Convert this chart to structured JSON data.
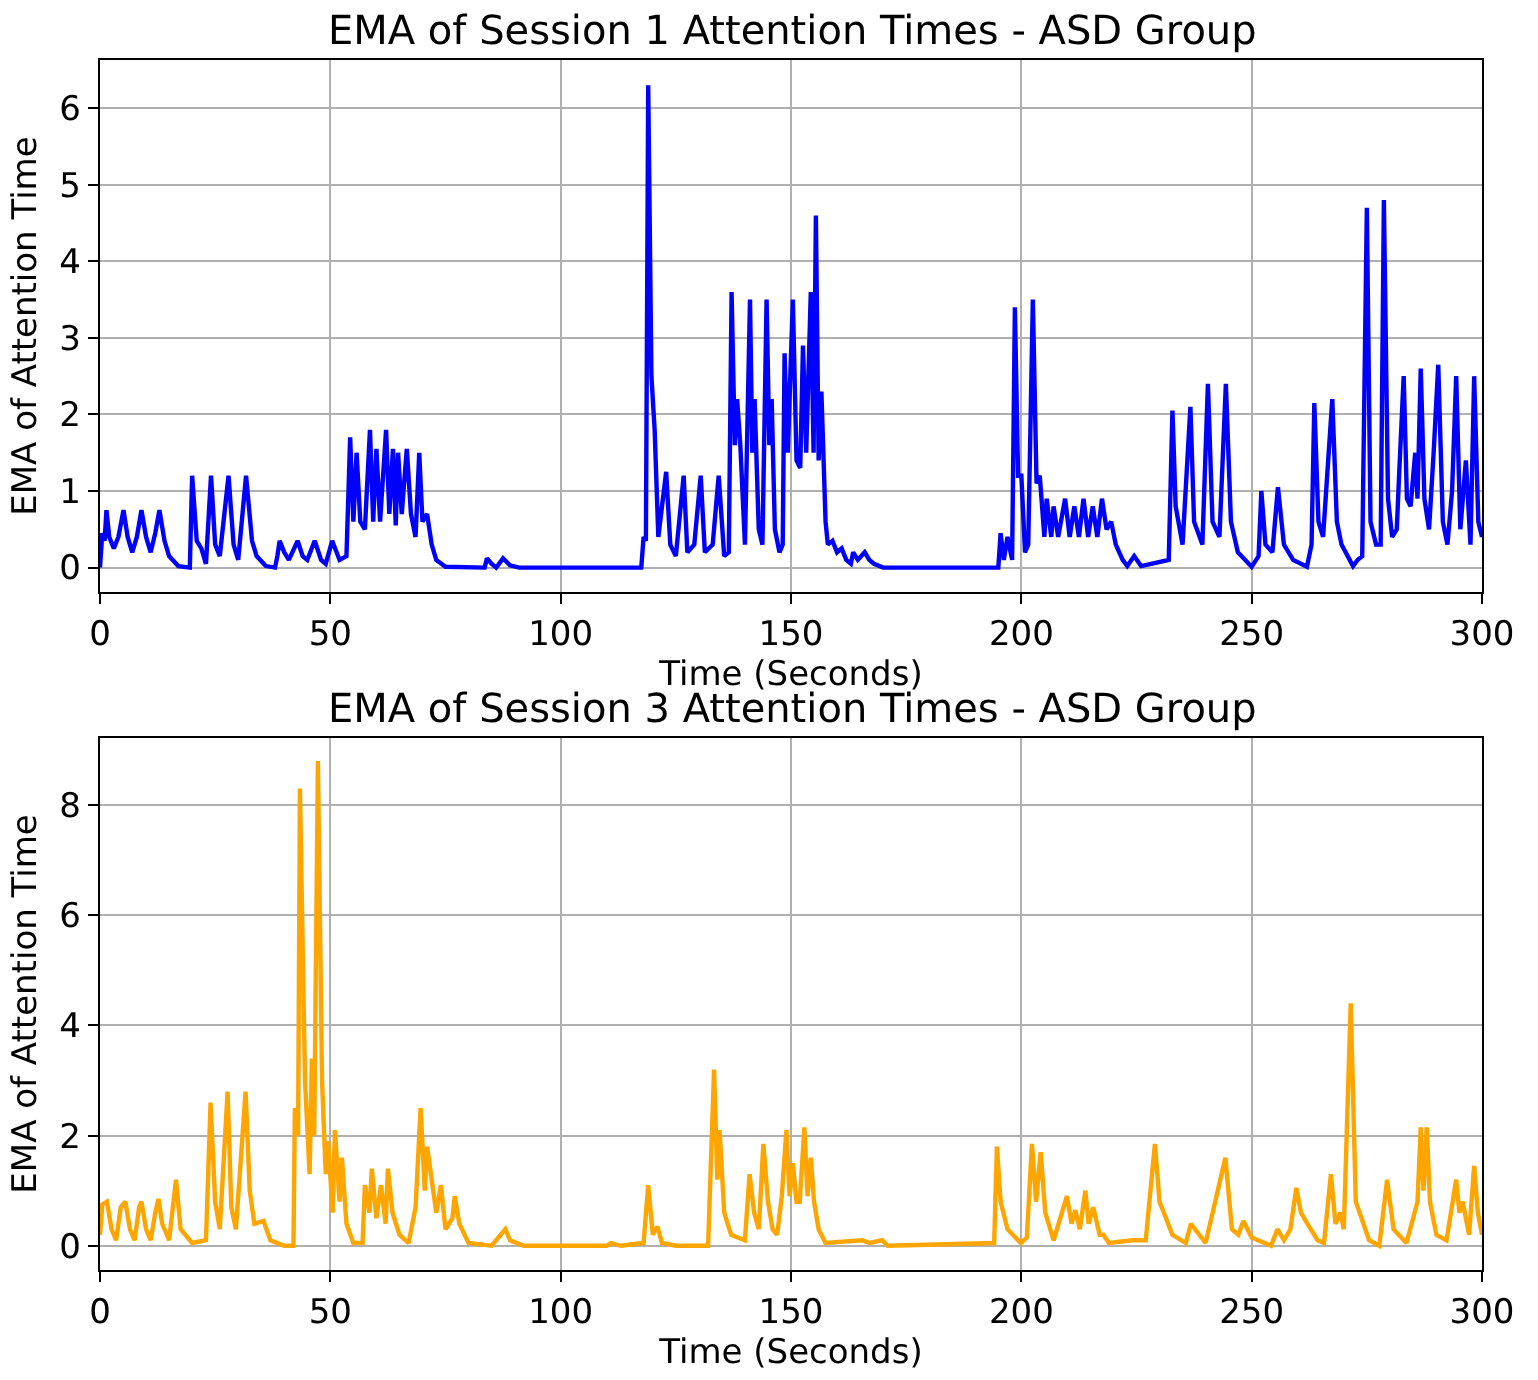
{
  "chart_data": [
    {
      "type": "line",
      "title": "EMA of Session 1 Attention Times - ASD Group",
      "xlabel": "Time (Seconds)",
      "ylabel": "EMA of Attention Time",
      "xlim": [
        0,
        300
      ],
      "ylim": [
        -0.32,
        6.63
      ],
      "xticks": [
        0,
        50,
        100,
        150,
        200,
        250,
        300
      ],
      "yticks": [
        0,
        1,
        2,
        3,
        4,
        5,
        6
      ],
      "grid": true,
      "series": [
        {
          "color": "#0000ff",
          "x": [
            0,
            0.5,
            1,
            1.4,
            2,
            3,
            4,
            5.1,
            6,
            7,
            8,
            9,
            10,
            11,
            12,
            12.9,
            14,
            15,
            17,
            19.5,
            20,
            21,
            22,
            23,
            24.1,
            25,
            26,
            27.9,
            29,
            30,
            31.7,
            33,
            34,
            36,
            38,
            38.5,
            39,
            40,
            41,
            42.9,
            44,
            45,
            46.6,
            48,
            49,
            50.4,
            52,
            53.5,
            54.3,
            55,
            55.7,
            56.5,
            57.5,
            58.6,
            59.3,
            60,
            60.8,
            62.1,
            62.8,
            63.6,
            64.2,
            64.7,
            65.5,
            66.6,
            67.5,
            68.5,
            69.3,
            70,
            71,
            72,
            73,
            75,
            83.5,
            84,
            85,
            86,
            87.5,
            89,
            91,
            117.5,
            118,
            118.5,
            119,
            119.7,
            120.4,
            121.2,
            122.9,
            123.8,
            125,
            126.7,
            127.5,
            129,
            130.4,
            131.3,
            133,
            134.3,
            135.5,
            136.5,
            137.1,
            137.8,
            138.3,
            139,
            140,
            141.1,
            141.6,
            142.1,
            143,
            143.8,
            144.7,
            145.3,
            145.8,
            146.5,
            147.5,
            148.2,
            148.6,
            149.3,
            150.4,
            151.2,
            152,
            152.6,
            153.3,
            154.3,
            154.9,
            155.4,
            156,
            156.6,
            157.5,
            158,
            159,
            160,
            161,
            162,
            163,
            163.5,
            164.5,
            166,
            167,
            168,
            170,
            195,
            195.5,
            196.2,
            197,
            198,
            198.6,
            199.3,
            200,
            200.8,
            201.5,
            202.5,
            203.3,
            204,
            205,
            205.5,
            206.5,
            207,
            208,
            209.5,
            210.5,
            211.5,
            212.5,
            213.5,
            214.5,
            215.5,
            216.5,
            217.5,
            218.5,
            219.5,
            220.5,
            222,
            223,
            224.5,
            226,
            232,
            232.8,
            233.5,
            235,
            236.7,
            237.5,
            239.3,
            240.5,
            241.5,
            243,
            244.4,
            245.5,
            247,
            250,
            251.5,
            252.1,
            253,
            254.5,
            255.7,
            257,
            259,
            262,
            263,
            263.6,
            264.5,
            265.5,
            267.5,
            268.5,
            269.5,
            272,
            273,
            274,
            275,
            275.8,
            277,
            278,
            278.7,
            279.6,
            280.5,
            281.5,
            282,
            283,
            283.7,
            284.5,
            285.5,
            286,
            286.7,
            287.5,
            288.5,
            289.5,
            290.5,
            291.5,
            292.5,
            293.5,
            294.4,
            295.3,
            296.5,
            297.5,
            298.3,
            299.2,
            300
          ],
          "values": [
            0,
            0.45,
            0.35,
            0.75,
            0.4,
            0.25,
            0.4,
            0.75,
            0.4,
            0.2,
            0.4,
            0.75,
            0.4,
            0.2,
            0.45,
            0.75,
            0.35,
            0.15,
            0.02,
            0,
            1.2,
            0.35,
            0.25,
            0.05,
            1.2,
            0.3,
            0.15,
            1.2,
            0.3,
            0.1,
            1.2,
            0.35,
            0.15,
            0.02,
            0,
            0.15,
            0.35,
            0.2,
            0.1,
            0.35,
            0.15,
            0.1,
            0.35,
            0.1,
            0.05,
            0.35,
            0.1,
            0.15,
            1.7,
            0.6,
            1.5,
            0.6,
            0.5,
            1.8,
            0.6,
            1.55,
            0.6,
            1.8,
            0.7,
            1.55,
            0.55,
            1.5,
            0.7,
            1.55,
            0.7,
            0.4,
            1.5,
            0.6,
            0.7,
            0.3,
            0.1,
            0.01,
            0,
            0.12,
            0.05,
            0,
            0.12,
            0.03,
            0,
            0,
            0.4,
            0.35,
            6.3,
            2.5,
            1.8,
            0.4,
            1.25,
            0.3,
            0.15,
            1.2,
            0.2,
            0.3,
            1.2,
            0.2,
            0.3,
            1.2,
            0.15,
            0.2,
            3.6,
            1.6,
            2.2,
            1.6,
            0.3,
            3.5,
            1.5,
            2.2,
            0.5,
            0.3,
            3.5,
            1.6,
            2.2,
            0.5,
            0.2,
            0.3,
            2.8,
            1.5,
            3.5,
            1.4,
            1.3,
            2.9,
            1.5,
            3.6,
            1.5,
            4.6,
            1.4,
            2.3,
            0.6,
            0.3,
            0.35,
            0.2,
            0.25,
            0.1,
            0.05,
            0.2,
            0.1,
            0.2,
            0.1,
            0.05,
            0,
            0,
            0.45,
            0.1,
            0.4,
            0.1,
            3.4,
            1.2,
            1.2,
            0.2,
            0.3,
            3.5,
            1.1,
            1.2,
            0.4,
            0.9,
            0.4,
            0.8,
            0.4,
            0.9,
            0.4,
            0.8,
            0.4,
            0.9,
            0.4,
            0.8,
            0.4,
            0.9,
            0.5,
            0.6,
            0.3,
            0.1,
            0.02,
            0.15,
            0.02,
            0.1,
            2.05,
            0.8,
            0.3,
            2.1,
            0.6,
            0.3,
            2.4,
            0.6,
            0.4,
            2.4,
            0.6,
            0.2,
            0.01,
            0.15,
            1.0,
            0.3,
            0.2,
            1.05,
            0.3,
            0.1,
            0.01,
            0.3,
            2.15,
            0.6,
            0.4,
            2.2,
            0.6,
            0.3,
            0.02,
            0.1,
            0.15,
            4.7,
            0.6,
            0.3,
            0.3,
            4.8,
            0.9,
            0.4,
            0.5,
            1.2,
            2.5,
            0.9,
            0.8,
            1.5,
            0.9,
            2.6,
            0.9,
            0.5,
            1.5,
            2.65,
            0.6,
            0.3,
            1.0,
            2.5,
            0.5,
            1.4,
            0.3,
            2.5,
            0.6,
            0.4
          ]
        }
      ]
    },
    {
      "type": "line",
      "title": "EMA of Session 3 Attention Times - ASD Group",
      "xlabel": "Time (Seconds)",
      "ylabel": "EMA of Attention Time",
      "xlim": [
        0,
        300
      ],
      "ylim": [
        -0.44,
        9.22
      ],
      "xticks": [
        0,
        50,
        100,
        150,
        200,
        250,
        300
      ],
      "yticks": [
        0,
        2,
        4,
        6,
        8
      ],
      "grid": true,
      "series": [
        {
          "color": "#ffa500",
          "x": [
            0,
            0.5,
            1.5,
            2.5,
            3.5,
            4.5,
            5.5,
            6.5,
            7.5,
            8.5,
            9,
            10,
            11,
            12,
            12.7,
            13.5,
            15,
            16.5,
            17.5,
            20,
            23,
            24,
            25,
            26,
            27.7,
            28.5,
            29.5,
            31.6,
            32.5,
            33.5,
            35.5,
            37,
            40,
            42,
            42.3,
            43,
            43.4,
            44.5,
            45.5,
            46,
            46.5,
            47.3,
            48.2,
            49,
            49.5,
            50.5,
            51,
            52,
            52.5,
            53.5,
            55,
            57,
            57.5,
            58.5,
            59,
            60,
            61,
            62,
            62.5,
            63.5,
            65,
            67,
            68.5,
            69.6,
            70.5,
            71,
            72,
            73,
            74,
            75,
            76.5,
            77,
            78,
            80,
            85,
            88,
            89,
            92,
            110,
            111,
            113,
            118,
            119,
            120,
            121,
            122,
            125,
            132,
            133.3,
            134,
            134.5,
            135.5,
            137,
            140,
            141,
            142,
            143,
            144,
            145,
            146,
            147,
            148,
            149,
            149.7,
            150.4,
            151.2,
            151.9,
            152.9,
            153.6,
            154.3,
            155,
            156,
            157.5,
            165.5,
            167,
            169.8,
            171,
            194.1,
            194.7,
            195.5,
            197,
            199.9,
            201.2,
            202.3,
            203.2,
            204.2,
            205.2,
            207,
            209.9,
            210.9,
            211.7,
            212.7,
            213.9,
            214.6,
            215.6,
            217,
            217.8,
            219,
            224.2,
            227,
            229,
            230,
            232.8,
            235.7,
            236.8,
            240,
            244.3,
            245.7,
            247.1,
            248.2,
            250,
            254.2,
            255.6,
            257,
            258.4,
            259.7,
            260.7,
            262.1,
            264.3,
            265.7,
            267.2,
            268.2,
            269.3,
            270,
            271.5,
            272.6,
            275.5,
            277.7,
            279.4,
            280.8,
            283.6,
            286,
            286.7,
            287.3,
            288,
            288.7,
            290.1,
            292.3,
            294.4,
            295.1,
            295.8,
            297.2,
            298.3,
            299.1,
            300
          ],
          "values": [
            0.2,
            0.75,
            0.8,
            0.3,
            0.1,
            0.7,
            0.8,
            0.3,
            0.1,
            0.7,
            0.8,
            0.3,
            0.1,
            0.6,
            0.85,
            0.4,
            0.1,
            1.2,
            0.3,
            0.05,
            0.1,
            2.6,
            0.8,
            0.3,
            2.8,
            0.7,
            0.3,
            2.8,
            1.0,
            0.4,
            0.45,
            0.1,
            0,
            0,
            2.5,
            2.0,
            8.3,
            3.0,
            1.3,
            3.4,
            2.0,
            8.8,
            3.0,
            1.3,
            1.9,
            0.6,
            2.1,
            0.8,
            1.6,
            0.4,
            0.05,
            0.05,
            1.1,
            0.6,
            1.4,
            0.5,
            1.1,
            0.4,
            1.4,
            0.6,
            0.2,
            0.05,
            0.7,
            2.5,
            1.0,
            1.8,
            1.2,
            0.6,
            1.1,
            0.3,
            0.5,
            0.9,
            0.4,
            0.05,
            0,
            0.3,
            0.1,
            0,
            0,
            0.05,
            0,
            0.05,
            1.1,
            0.2,
            0.35,
            0.05,
            0,
            0,
            3.2,
            1.2,
            2.1,
            0.6,
            0.2,
            0.1,
            1.3,
            0.6,
            0.3,
            1.85,
            0.8,
            0.3,
            0.2,
            0.9,
            2.1,
            0.9,
            1.5,
            0.8,
            0.8,
            2.15,
            0.9,
            1.6,
            0.8,
            0.3,
            0.05,
            0.1,
            0.05,
            0.1,
            0,
            0.05,
            1.8,
            0.8,
            0.3,
            0.05,
            0.15,
            1.85,
            0.8,
            1.7,
            0.6,
            0.1,
            0.9,
            0.4,
            0.65,
            0.3,
            1.0,
            0.4,
            0.7,
            0.2,
            0.2,
            0.05,
            0.1,
            0.1,
            1.85,
            0.8,
            0.2,
            0.05,
            0.4,
            0.05,
            1.6,
            0.3,
            0.2,
            0.45,
            0.15,
            0,
            0.3,
            0.1,
            0.3,
            1.05,
            0.6,
            0.4,
            0.1,
            0.05,
            1.3,
            0.4,
            0.6,
            0.3,
            4.4,
            0.8,
            0.1,
            0,
            1.2,
            0.3,
            0.05,
            0.8,
            2.15,
            1.0,
            2.15,
            0.8,
            0.2,
            0.1,
            1.2,
            0.6,
            0.8,
            0.2,
            1.45,
            0.6,
            0.2
          ]
        }
      ]
    }
  ]
}
